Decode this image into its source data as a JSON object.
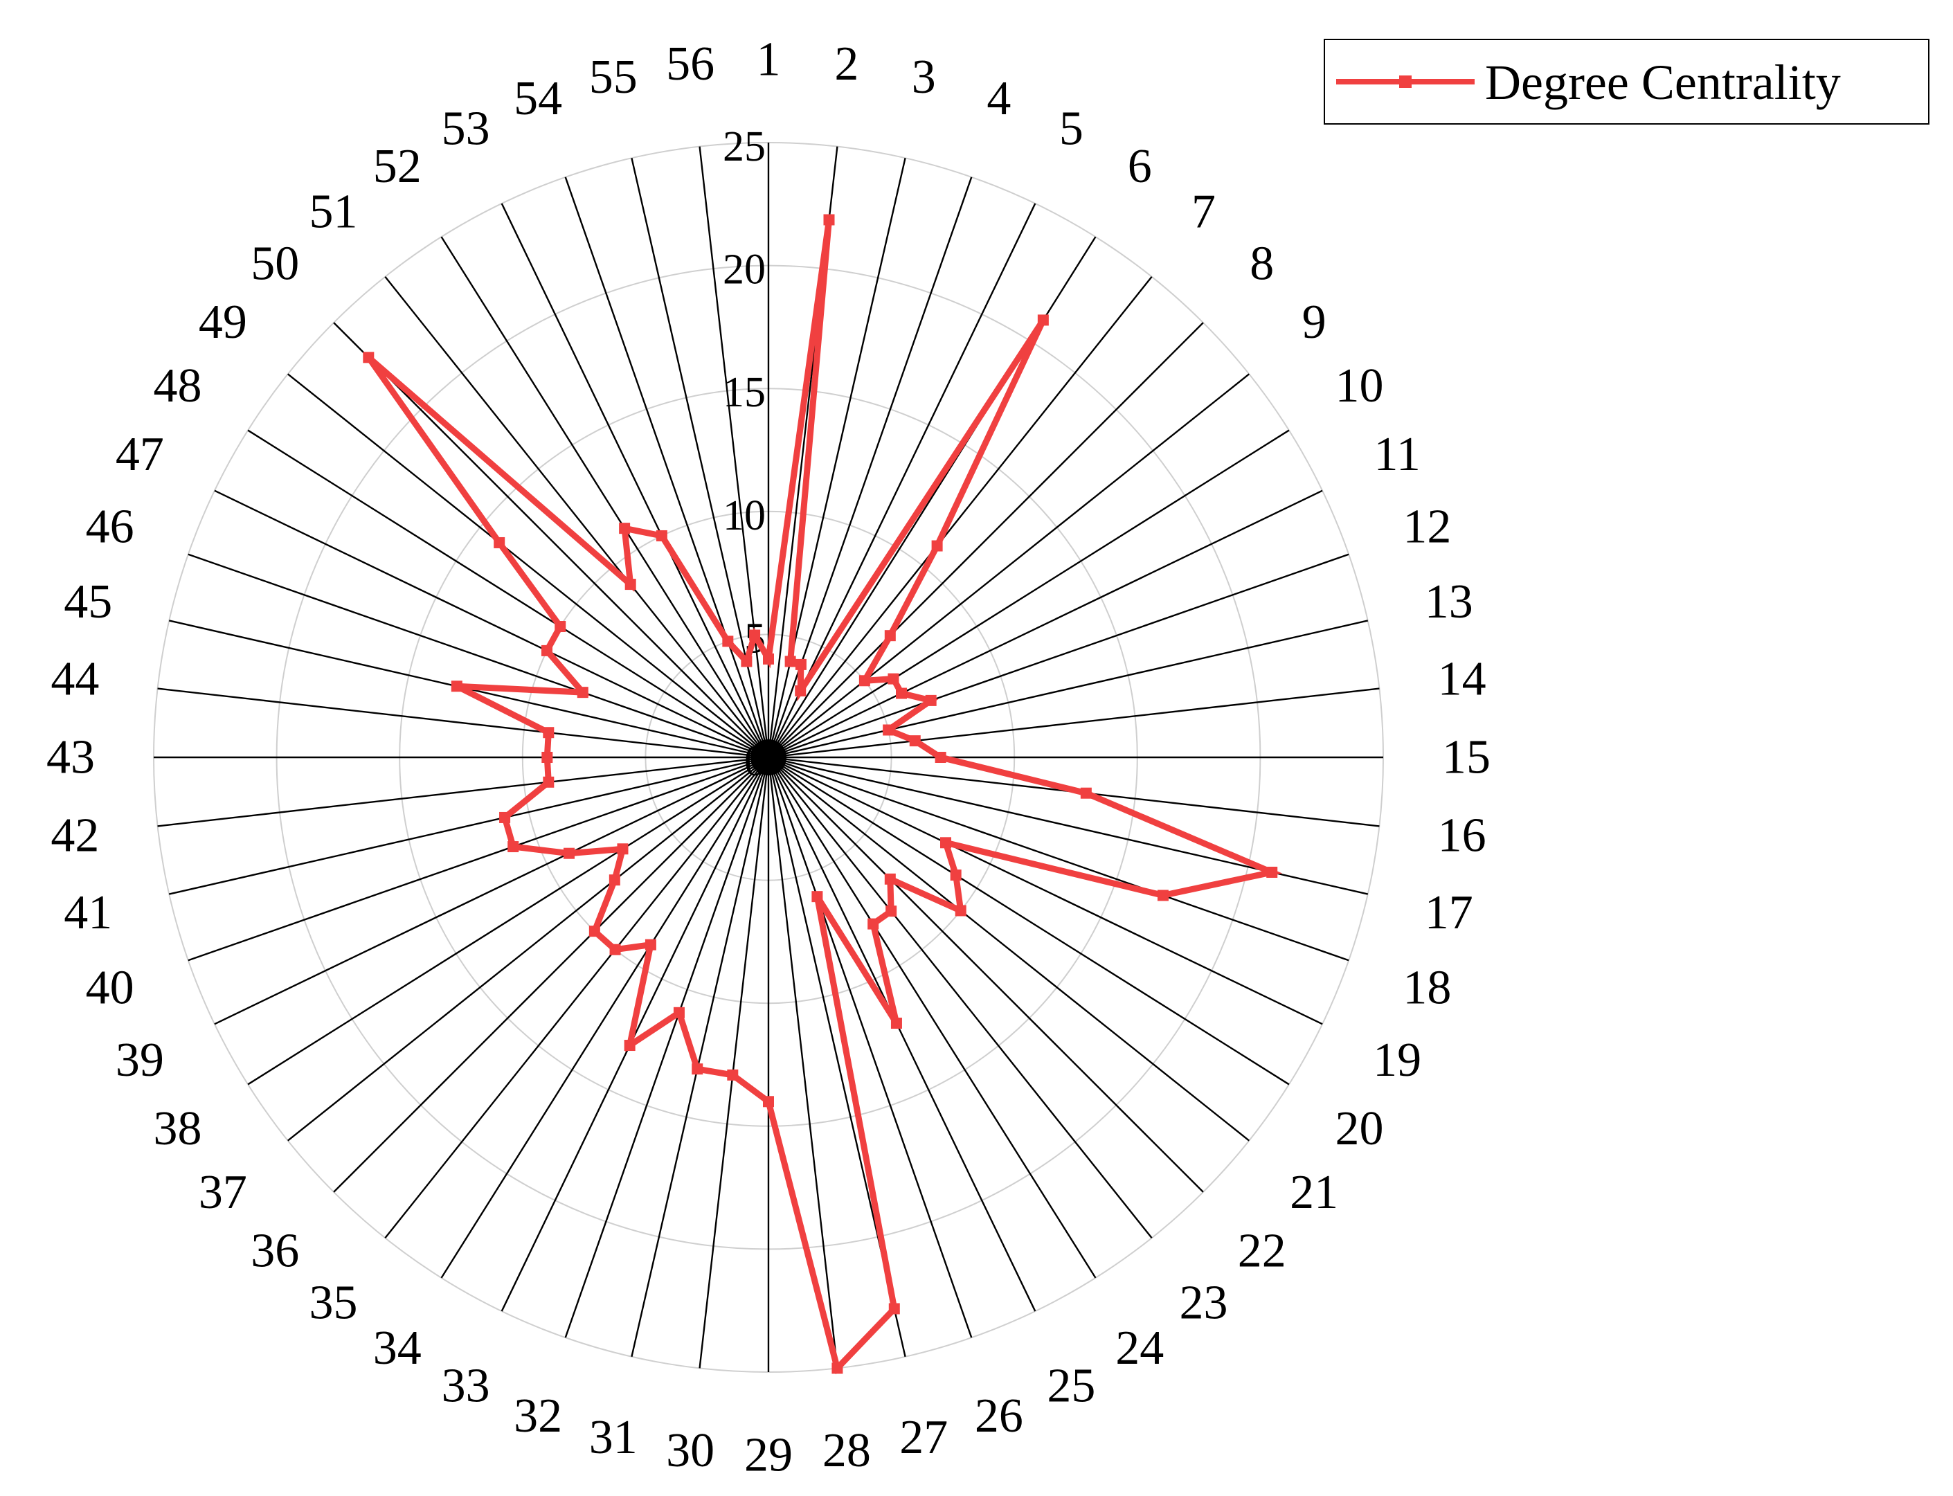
{
  "chart_data": {
    "type": "radar",
    "title": "",
    "axis_labels": [
      "1",
      "2",
      "3",
      "4",
      "5",
      "6",
      "7",
      "8",
      "9",
      "10",
      "11",
      "12",
      "13",
      "14",
      "15",
      "16",
      "17",
      "18",
      "19",
      "20",
      "21",
      "22",
      "23",
      "24",
      "25",
      "26",
      "27",
      "28",
      "29",
      "30",
      "31",
      "32",
      "33",
      "34",
      "35",
      "36",
      "37",
      "38",
      "39",
      "40",
      "41",
      "42",
      "43",
      "44",
      "45",
      "46",
      "47",
      "48",
      "49",
      "50",
      "51",
      "52",
      "53",
      "54",
      "55",
      "56"
    ],
    "radial_ticks": [
      "0",
      "5",
      "10",
      "15",
      "20",
      "25"
    ],
    "rlim": [
      0,
      25
    ],
    "grid": true,
    "legend_position": "top-right",
    "series": [
      {
        "name": "Degree Centrality",
        "color": "#f04040",
        "marker": "square",
        "values": [
          4,
          22,
          4,
          4,
          3,
          21,
          11,
          7,
          5,
          6,
          6,
          7,
          5,
          6,
          7,
          13,
          21,
          17,
          8,
          9,
          10,
          7,
          8,
          8,
          12,
          6,
          23,
          25,
          14,
          13,
          13,
          11,
          13,
          9,
          10,
          10,
          8,
          7,
          9,
          11,
          11,
          9,
          9,
          9,
          13,
          8,
          10,
          10,
          14,
          23,
          9,
          11,
          10,
          5,
          4,
          5
        ]
      }
    ]
  }
}
